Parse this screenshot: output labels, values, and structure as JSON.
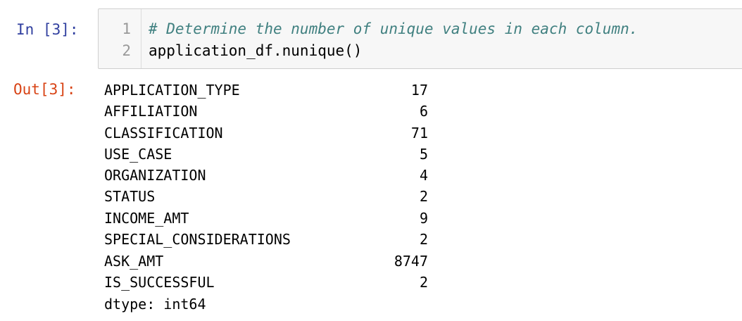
{
  "input_cell": {
    "prompt": "In [3]:",
    "lines": [
      {
        "number": "1",
        "text": "# Determine the number of unique values in each column."
      },
      {
        "number": "2",
        "text": "application_df.nunique()"
      }
    ]
  },
  "output_cell": {
    "prompt": "Out[3]:",
    "rows": [
      {
        "key": "APPLICATION_TYPE",
        "value": "17"
      },
      {
        "key": "AFFILIATION",
        "value": "6"
      },
      {
        "key": "CLASSIFICATION",
        "value": "71"
      },
      {
        "key": "USE_CASE",
        "value": "5"
      },
      {
        "key": "ORGANIZATION",
        "value": "4"
      },
      {
        "key": "STATUS",
        "value": "2"
      },
      {
        "key": "INCOME_AMT",
        "value": "9"
      },
      {
        "key": "SPECIAL_CONSIDERATIONS",
        "value": "2"
      },
      {
        "key": "ASK_AMT",
        "value": "8747"
      },
      {
        "key": "IS_SUCCESSFUL",
        "value": "2"
      }
    ],
    "dtype": "dtype: int64"
  }
}
